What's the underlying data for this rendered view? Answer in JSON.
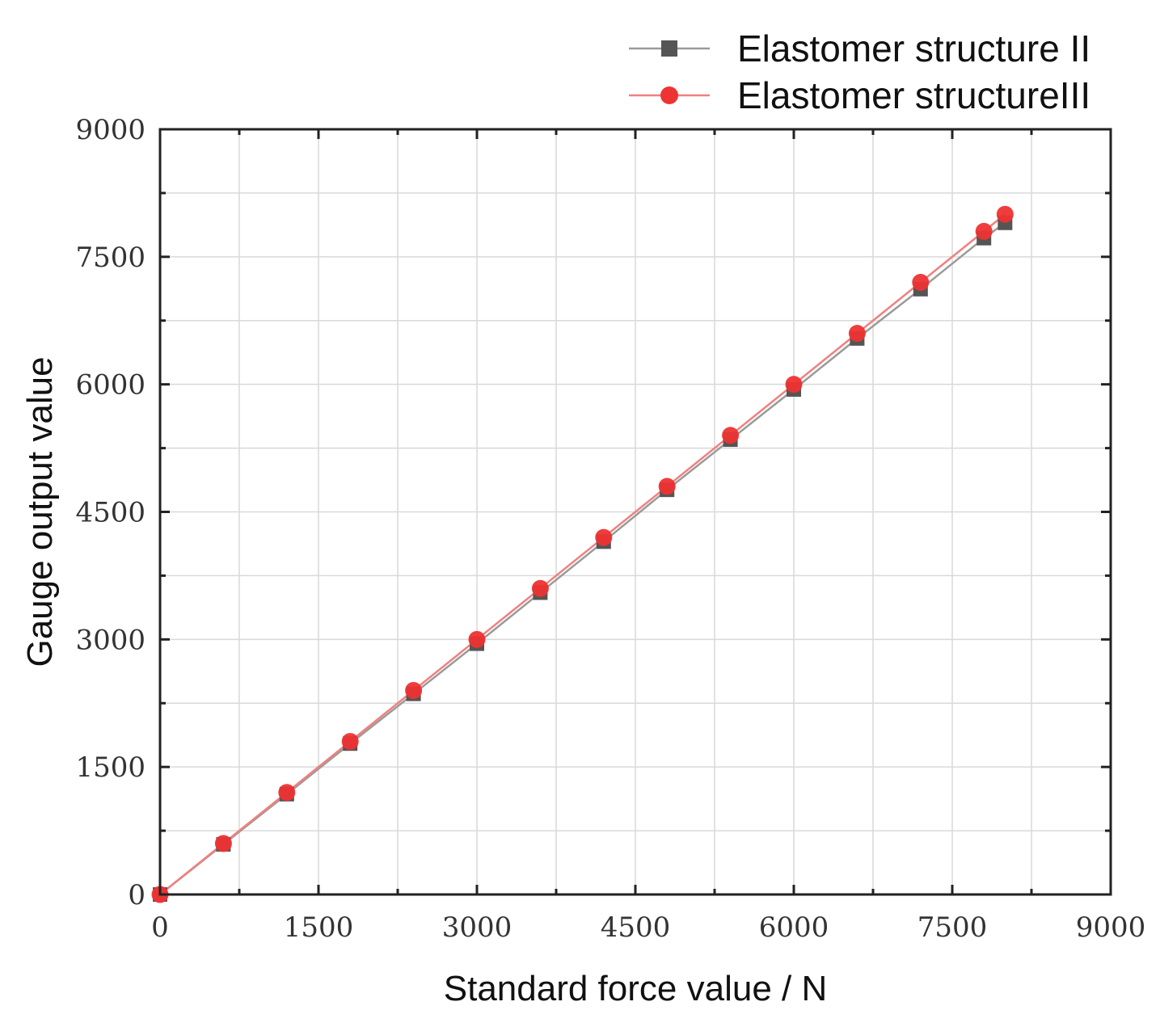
{
  "chart_data": {
    "type": "line",
    "xlabel": "Standard force value / N",
    "ylabel": "Gauge output value",
    "xlim": [
      0,
      9000
    ],
    "ylim": [
      0,
      9000
    ],
    "xticks": [
      0,
      1500,
      3000,
      4500,
      6000,
      7500,
      9000
    ],
    "yticks": [
      0,
      1500,
      3000,
      4500,
      6000,
      7500,
      9000
    ],
    "grid": true,
    "legend_position": "top-right",
    "series": [
      {
        "name": "Elastomer structure II",
        "marker": "square",
        "color": "#555555",
        "line_color": "#9a9a9a",
        "x": [
          0,
          600,
          1200,
          1800,
          2400,
          3000,
          3600,
          4200,
          4800,
          5400,
          6000,
          6600,
          7200,
          7800,
          8000
        ],
        "y": [
          0,
          590,
          1180,
          1775,
          2360,
          2950,
          3550,
          4150,
          4760,
          5350,
          5940,
          6540,
          7120,
          7720,
          7900
        ]
      },
      {
        "name": "Elastomer structureIII",
        "marker": "circle",
        "color": "#ee3333",
        "line_color": "#f08080",
        "x": [
          0,
          600,
          1200,
          1800,
          2400,
          3000,
          3600,
          4200,
          4800,
          5400,
          6000,
          6600,
          7200,
          7800,
          8000
        ],
        "y": [
          0,
          600,
          1200,
          1800,
          2400,
          3000,
          3600,
          4200,
          4800,
          5400,
          6000,
          6600,
          7200,
          7800,
          8000
        ]
      }
    ]
  }
}
